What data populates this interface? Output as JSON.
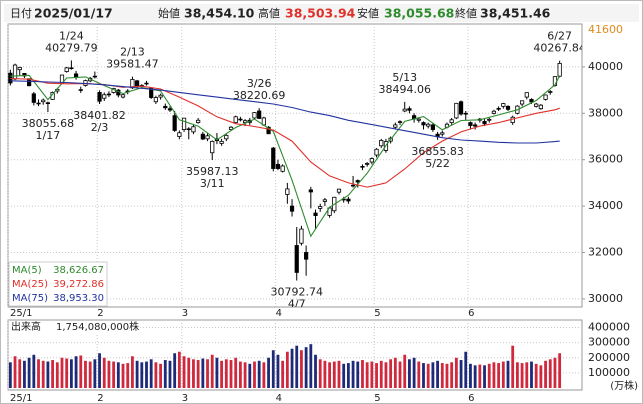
{
  "header": {
    "date_label": "日付",
    "date": "2025/01/17",
    "open_label": "始値",
    "open": "38,454.10",
    "high_label": "高値",
    "high": "38,503.94",
    "low_label": "安値",
    "low": "38,055.68",
    "close_label": "終値",
    "close": "38,451.46"
  },
  "chart_data": {
    "type": "candlestick",
    "categories": [
      "25/1",
      null,
      null,
      null,
      null,
      null,
      null,
      null,
      null,
      null,
      null,
      null,
      null,
      null,
      null,
      null,
      null,
      null,
      null,
      "2",
      null,
      null,
      null,
      null,
      null,
      null,
      null,
      null,
      null,
      null,
      null,
      null,
      null,
      null,
      null,
      null,
      null,
      "3",
      null,
      null,
      null,
      null,
      null,
      null,
      null,
      null,
      null,
      null,
      null,
      null,
      null,
      null,
      null,
      null,
      null,
      null,
      null,
      "4",
      null,
      null,
      null,
      null,
      null,
      null,
      null,
      null,
      null,
      null,
      null,
      null,
      null,
      null,
      null,
      null,
      null,
      null,
      null,
      null,
      "5",
      null,
      null,
      null,
      null,
      null,
      null,
      null,
      null,
      null,
      null,
      null,
      null,
      null,
      null,
      null,
      null,
      null,
      null,
      null,
      "6",
      null,
      null,
      null,
      null,
      null,
      null,
      null,
      null,
      null,
      null,
      null,
      null,
      null,
      null,
      null,
      null,
      null,
      null,
      null
    ],
    "open": [
      39730,
      39480,
      39880,
      39720,
      39490,
      38840,
      38410,
      38500,
      38454.1,
      38600,
      38960,
      39300,
      39800,
      39960,
      39700,
      39000,
      39200,
      39400,
      39600,
      38900,
      38650,
      38820,
      38900,
      39000,
      38700,
      38950,
      39100,
      39400,
      39200,
      39300,
      39100,
      38500,
      38700,
      38300,
      38200,
      37900,
      37000,
      37300,
      37300,
      37200,
      37600,
      37100,
      36900,
      36300,
      36900,
      36700,
      36900,
      37300,
      37600,
      37750,
      37600,
      37700,
      37800,
      38100,
      37500,
      37400,
      36500,
      35800,
      35500,
      34500,
      34000,
      32300,
      32400,
      32000,
      34700,
      33700,
      33900,
      34200,
      33600,
      33800,
      34600,
      34300,
      34300,
      34900,
      35100,
      35700,
      35800,
      35900,
      36200,
      36600,
      36400,
      36800,
      37400,
      37600,
      38100,
      38200,
      37900,
      37700,
      37600,
      37450,
      37500,
      37100,
      37100,
      37400,
      37600,
      37800,
      38500,
      38000,
      37600,
      37500,
      37700,
      37650,
      37700,
      38000,
      38200,
      38300,
      38300,
      37600,
      38000,
      38400,
      38700,
      38600,
      38300,
      38200,
      38600,
      38900,
      39200,
      39600
    ],
    "high": [
      39880,
      40140,
      40010,
      39730,
      39500,
      38920,
      38600,
      38640,
      38503.94,
      38940,
      39100,
      39660,
      40000,
      40279.79,
      39830,
      39150,
      39450,
      39570,
      39800,
      38990,
      38900,
      38950,
      39100,
      39050,
      38860,
      39040,
      39581.47,
      39440,
      39260,
      39400,
      39130,
      38760,
      38850,
      38420,
      38300,
      38100,
      37260,
      37800,
      37400,
      37500,
      37800,
      37200,
      37150,
      36830,
      37150,
      36900,
      37100,
      37450,
      37900,
      37850,
      37750,
      37800,
      38050,
      38220.69,
      37850,
      37450,
      36550,
      36000,
      35800,
      35000,
      34300,
      33100,
      33150,
      32300,
      34830,
      33850,
      34100,
      34350,
      33950,
      34400,
      34750,
      34400,
      34400,
      35300,
      35150,
      35800,
      35900,
      36100,
      36500,
      36900,
      36900,
      37000,
      37600,
      37700,
      38494.06,
      38300,
      38000,
      37800,
      37650,
      37600,
      37600,
      37200,
      37250,
      37600,
      37800,
      38450,
      38550,
      38100,
      37650,
      37600,
      37800,
      37750,
      37800,
      38150,
      38300,
      38450,
      38350,
      37900,
      38350,
      38550,
      38900,
      38650,
      38450,
      38400,
      38800,
      39000,
      39600,
      40267.84
    ],
    "low": [
      39200,
      39430,
      39620,
      39520,
      39160,
      38340,
      38310,
      38370,
      38055.68,
      38580,
      38850,
      39270,
      39750,
      39880,
      39450,
      38880,
      39150,
      39340,
      39500,
      38401.82,
      38530,
      38700,
      38850,
      38690,
      38640,
      38820,
      39050,
      39110,
      39060,
      39200,
      38620,
      38400,
      38590,
      38150,
      38060,
      37200,
      36880,
      37200,
      36880,
      37100,
      37550,
      36850,
      36800,
      35987.13,
      36670,
      36600,
      36800,
      37250,
      37550,
      37650,
      37450,
      37500,
      37750,
      37750,
      37450,
      37100,
      35500,
      35550,
      35450,
      34100,
      33550,
      30792.74,
      32300,
      31000,
      33900,
      33000,
      33750,
      34000,
      33500,
      33700,
      34500,
      34150,
      34100,
      34800,
      34800,
      35550,
      35700,
      35800,
      36100,
      36500,
      36300,
      36700,
      37300,
      37500,
      38050,
      38000,
      37600,
      37600,
      37300,
      37350,
      37200,
      36855.83,
      37000,
      37350,
      37500,
      37750,
      37900,
      37700,
      37300,
      37300,
      37600,
      37450,
      37600,
      37950,
      38100,
      38200,
      38100,
      37500,
      37950,
      38300,
      38600,
      38400,
      38250,
      38150,
      38550,
      38800,
      39150,
      39550
    ],
    "close": [
      39310,
      40080,
      39980,
      39610,
      39190,
      38470,
      38440,
      38570,
      38451.46,
      38900,
      39030,
      39650,
      39960,
      39930,
      39570,
      39020,
      39410,
      39510,
      39570,
      38520,
      38800,
      38830,
      39070,
      38790,
      38800,
      38960,
      39460,
      39150,
      39170,
      39270,
      38680,
      38680,
      38780,
      38240,
      38140,
      37260,
      37160,
      37790,
      37330,
      37420,
      37700,
      36890,
      37030,
      36790,
      36820,
      36790,
      37050,
      37400,
      37850,
      37750,
      37680,
      37610,
      38030,
      37780,
      37800,
      37120,
      35620,
      35620,
      35730,
      34740,
      33780,
      31140,
      33010,
      31710,
      34610,
      33590,
      33980,
      34270,
      33920,
      34380,
      34730,
      34280,
      34220,
      34870,
      35040,
      35710,
      35840,
      36050,
      36450,
      36830,
      36780,
      36930,
      37500,
      37640,
      38180,
      38130,
      37760,
      37750,
      37500,
      37530,
      37300,
      36990,
      37160,
      37530,
      37720,
      38430,
      37970,
      37970,
      37470,
      37450,
      37750,
      37550,
      37740,
      38090,
      38210,
      38420,
      38170,
      37830,
      38310,
      38540,
      38890,
      38490,
      38400,
      38350,
      38790,
      38940,
      39580,
      40150
    ],
    "up_color": "#ffffff",
    "down_color": "#000000",
    "ylim": [
      29650,
      41850
    ],
    "yticks": [
      30000,
      32000,
      34000,
      36000,
      38000,
      40000
    ],
    "ymax_marker": 41600,
    "ymax_marker_color": "#e08a1e",
    "grid": true,
    "annotations": [
      {
        "label": "1/24",
        "value": 40279.79,
        "kind": "high"
      },
      {
        "label": "2/13",
        "value": 39581.47,
        "kind": "high"
      },
      {
        "label": "3/26",
        "value": 38220.69,
        "kind": "high"
      },
      {
        "label": "5/13",
        "value": 38494.06,
        "kind": "high"
      },
      {
        "label": "6/27",
        "value": 40267.84,
        "kind": "high"
      },
      {
        "label": "1/17",
        "value": 38055.68,
        "kind": "low"
      },
      {
        "label": "2/3",
        "value": 38401.82,
        "kind": "low"
      },
      {
        "label": "3/11",
        "value": 35987.13,
        "kind": "low"
      },
      {
        "label": "4/7",
        "value": 30792.74,
        "kind": "low"
      },
      {
        "label": "5/22",
        "value": 36855.83,
        "kind": "low"
      }
    ],
    "ma": [
      {
        "name": "MA(5)",
        "legend_value": "38,626.67",
        "color": "#2e8b2e",
        "x": [
          0,
          4,
          8,
          12,
          16,
          20,
          24,
          28,
          32,
          36,
          40,
          44,
          48,
          52,
          56,
          60,
          64,
          68,
          72,
          76,
          80,
          84,
          88,
          92,
          96,
          100,
          104,
          108,
          112,
          116,
          117
        ],
        "values": [
          39600,
          39640,
          38590,
          39520,
          39570,
          39200,
          38850,
          39110,
          38960,
          37720,
          37450,
          36860,
          37390,
          37750,
          37220,
          35120,
          32700,
          33950,
          34470,
          35420,
          36610,
          37650,
          37860,
          37290,
          37690,
          37720,
          37930,
          38150,
          38550,
          39230,
          39630
        ]
      },
      {
        "name": "MA(25)",
        "legend_value": "39,272.86",
        "color": "#e0302a",
        "x": [
          0,
          4,
          8,
          12,
          16,
          20,
          24,
          28,
          32,
          36,
          40,
          44,
          48,
          52,
          56,
          60,
          64,
          68,
          72,
          76,
          80,
          84,
          88,
          92,
          96,
          100,
          104,
          108,
          112,
          116,
          117
        ],
        "values": [
          39500,
          39470,
          39300,
          39270,
          39280,
          39240,
          39120,
          39170,
          39050,
          38700,
          38320,
          37850,
          37550,
          37430,
          37280,
          36800,
          35900,
          35300,
          35000,
          34820,
          35000,
          35600,
          36300,
          36800,
          37200,
          37450,
          37600,
          37800,
          38000,
          38150,
          38220
        ]
      },
      {
        "name": "MA(75)",
        "legend_value": "38,953.30",
        "color": "#2233a0",
        "x": [
          0,
          4,
          8,
          12,
          16,
          20,
          24,
          28,
          32,
          36,
          40,
          44,
          48,
          52,
          56,
          60,
          64,
          68,
          72,
          76,
          80,
          84,
          88,
          92,
          96,
          100,
          104,
          108,
          112,
          116,
          117
        ],
        "values": [
          39400,
          39380,
          39350,
          39330,
          39280,
          39230,
          39150,
          39080,
          39000,
          38900,
          38800,
          38700,
          38600,
          38500,
          38400,
          38250,
          38050,
          37900,
          37700,
          37550,
          37400,
          37250,
          37100,
          36950,
          36850,
          36800,
          36750,
          36720,
          36720,
          36780,
          36800
        ]
      }
    ],
    "volume": {
      "title": "出来高",
      "total": "1,754,080,000株",
      "unit": "(万株)",
      "up_color": "#d0283c",
      "down_color": "#1c2a78",
      "ylim": [
        0,
        450000
      ],
      "yticks": [
        100000,
        200000,
        300000,
        400000
      ],
      "values": [
        170000,
        210000,
        190000,
        180000,
        200000,
        220000,
        190000,
        180000,
        175408,
        185000,
        170000,
        200000,
        195000,
        190000,
        210000,
        215000,
        180000,
        175000,
        190000,
        230000,
        200000,
        180000,
        175000,
        170000,
        160000,
        165000,
        210000,
        180000,
        170000,
        175000,
        190000,
        170000,
        160000,
        185000,
        180000,
        230000,
        240000,
        210000,
        200000,
        190000,
        185000,
        195000,
        190000,
        220000,
        200000,
        180000,
        190000,
        185000,
        200000,
        175000,
        170000,
        160000,
        175000,
        180000,
        170000,
        200000,
        250000,
        220000,
        180000,
        240000,
        260000,
        280000,
        250000,
        270000,
        290000,
        220000,
        190000,
        180000,
        170000,
        175000,
        180000,
        160000,
        165000,
        180000,
        175000,
        185000,
        170000,
        175000,
        165000,
        180000,
        170000,
        190000,
        200000,
        175000,
        220000,
        190000,
        200000,
        175000,
        165000,
        160000,
        170000,
        180000,
        165000,
        160000,
        170000,
        200000,
        185000,
        240000,
        160000,
        150000,
        155000,
        150000,
        160000,
        170000,
        165000,
        175000,
        180000,
        280000,
        170000,
        165000,
        170000,
        175000,
        160000,
        150000,
        180000,
        190000,
        200000,
        230000
      ]
    }
  }
}
